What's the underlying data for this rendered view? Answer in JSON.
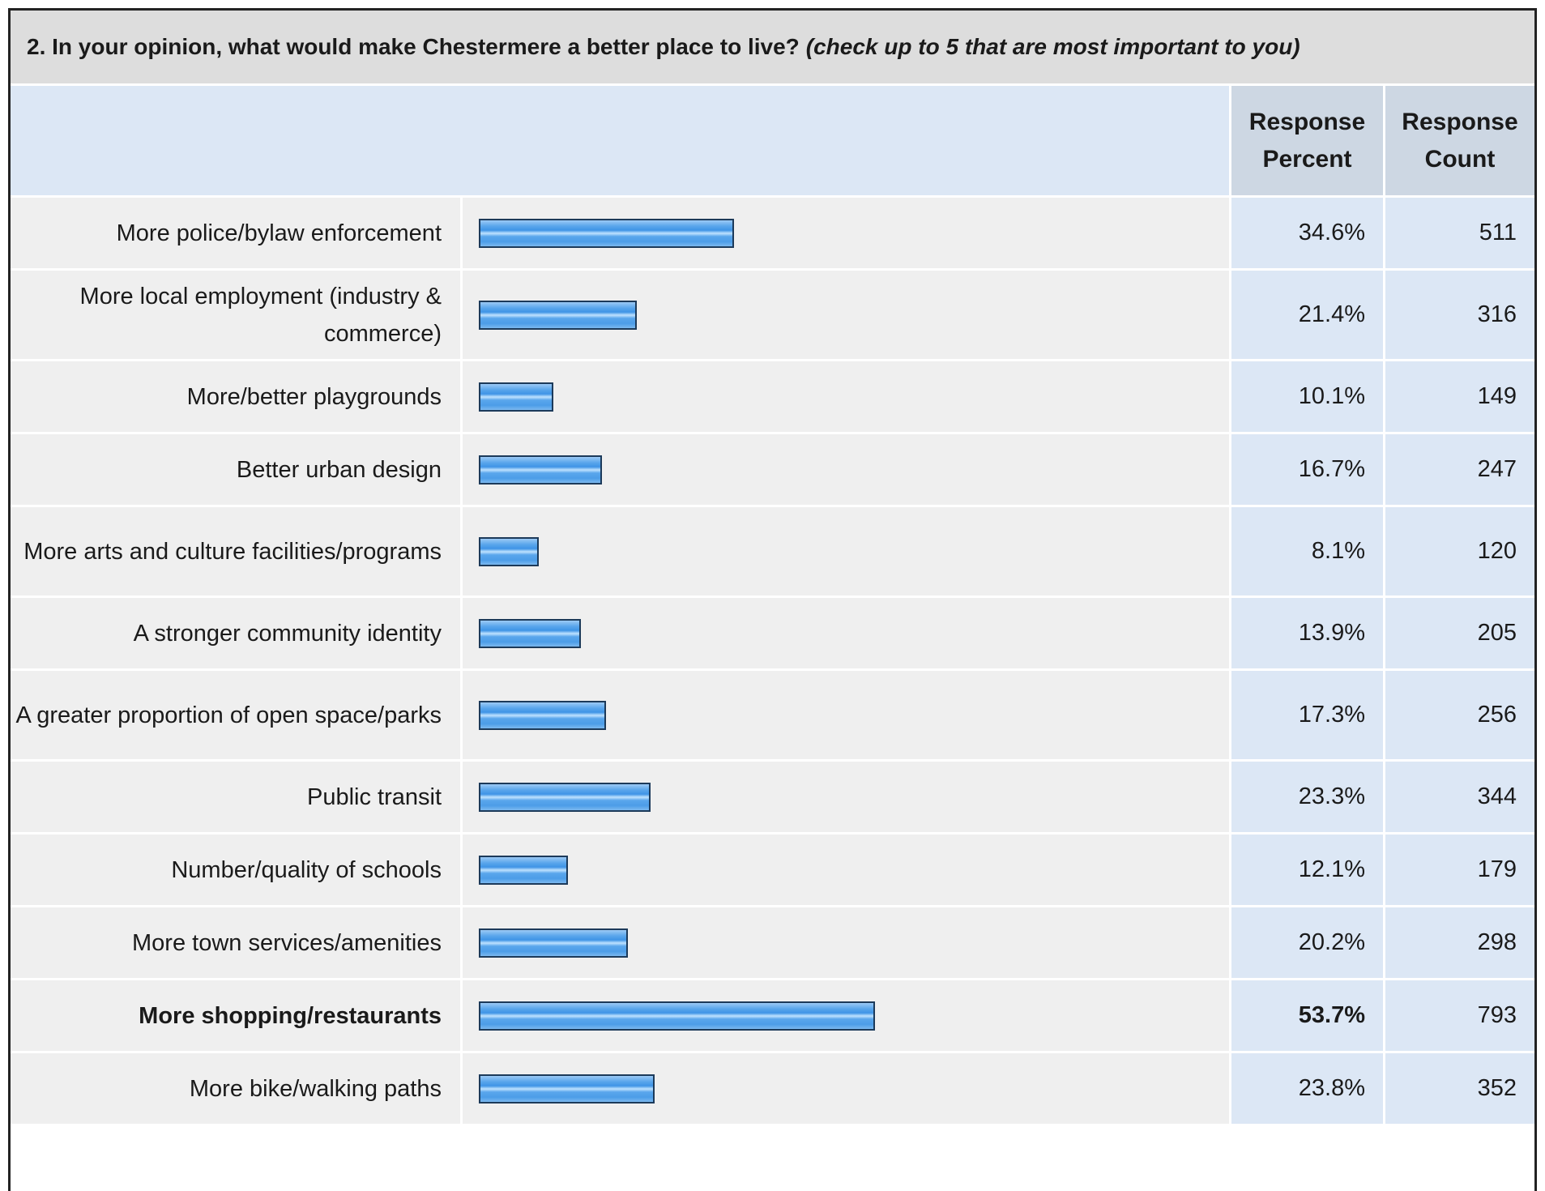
{
  "question": {
    "main": "2. In your opinion, what would make Chestermere a better place to live?",
    "note": "(check up to 5 that are most important to you)"
  },
  "headers": {
    "percent_line1": "Response",
    "percent_line2": "Percent",
    "count_line1": "Response",
    "count_line2": "Count"
  },
  "rows": [
    {
      "label": "More police/bylaw enforcement",
      "percent": "34.6%",
      "count": "511"
    },
    {
      "label": "More local employment (industry & commerce)",
      "percent": "21.4%",
      "count": "316"
    },
    {
      "label": "More/better playgrounds",
      "percent": "10.1%",
      "count": "149"
    },
    {
      "label": "Better urban design",
      "percent": "16.7%",
      "count": "247"
    },
    {
      "label": "More arts and culture facilities/programs",
      "percent": "8.1%",
      "count": "120"
    },
    {
      "label": "A stronger community identity",
      "percent": "13.9%",
      "count": "205"
    },
    {
      "label": "A greater proportion of open space/parks",
      "percent": "17.3%",
      "count": "256"
    },
    {
      "label": "Public transit",
      "percent": "23.3%",
      "count": "344"
    },
    {
      "label": "Number/quality of schools",
      "percent": "12.1%",
      "count": "179"
    },
    {
      "label": "More town services/amenities",
      "percent": "20.2%",
      "count": "298"
    },
    {
      "label": "More shopping/restaurants",
      "percent": "53.7%",
      "count": "793"
    },
    {
      "label": "More bike/walking paths",
      "percent": "23.8%",
      "count": "352"
    }
  ],
  "chart_data": {
    "type": "bar",
    "orientation": "horizontal",
    "categories": [
      "More police/bylaw enforcement",
      "More local employment (industry & commerce)",
      "More/better playgrounds",
      "Better urban design",
      "More arts and culture facilities/programs",
      "A stronger community identity",
      "A greater proportion of open space/parks",
      "Public transit",
      "Number/quality of schools",
      "More town services/amenities",
      "More shopping/restaurants",
      "More bike/walking paths"
    ],
    "values": [
      34.6,
      21.4,
      10.1,
      16.7,
      8.1,
      13.9,
      17.3,
      23.3,
      12.1,
      20.2,
      53.7,
      23.8
    ],
    "counts": [
      511,
      316,
      149,
      247,
      120,
      205,
      256,
      344,
      179,
      298,
      793,
      352
    ],
    "xlim": [
      0,
      100
    ],
    "highlight_category": "More shopping/restaurants",
    "bar_color": "#5aa6ec",
    "bar_border_color": "#1c3a5a",
    "grid": false
  }
}
